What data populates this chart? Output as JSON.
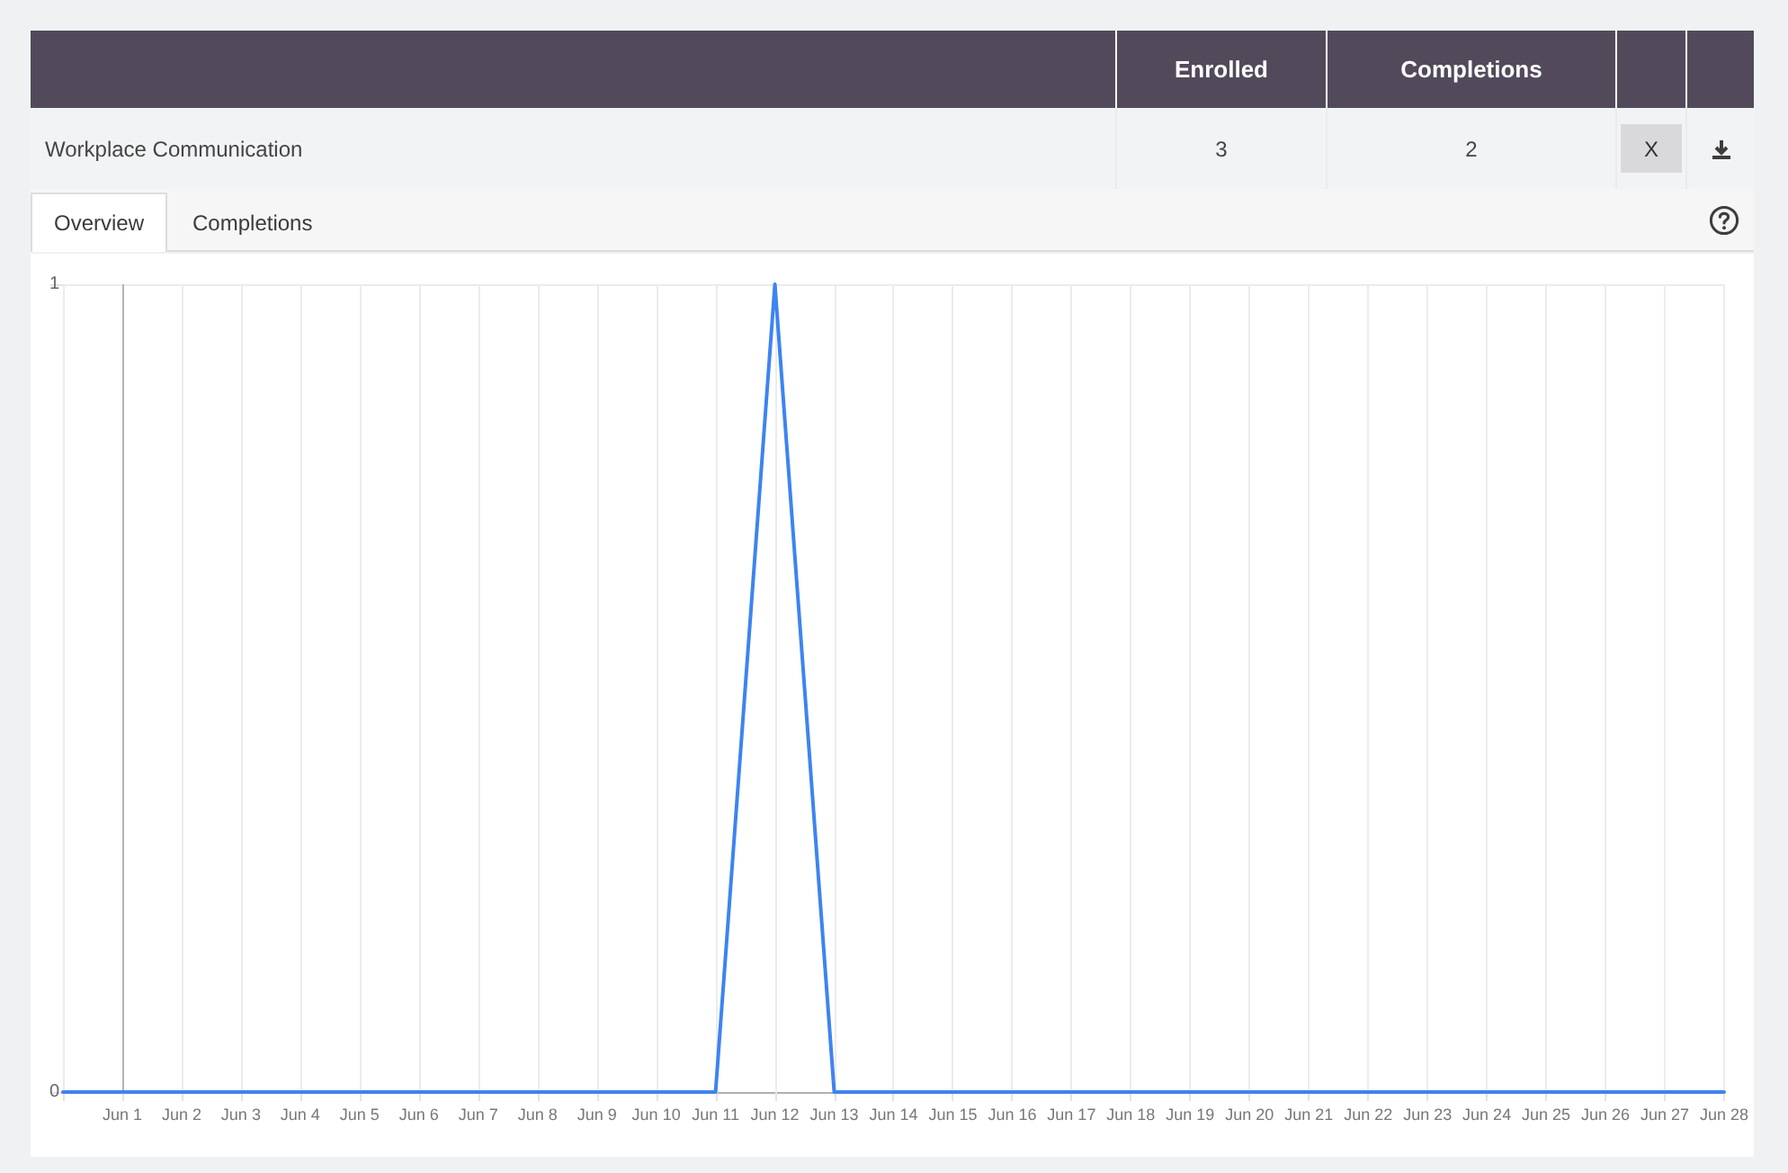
{
  "chart_data": [
    {
      "type": "other",
      "title": "Workplace Communication",
      "categories": [
        "Enrolled",
        "Completions"
      ],
      "values": [
        3,
        2
      ],
      "data_labels": true,
      "annotations": [
        "X",
        "Overview",
        "Completions"
      ]
    },
    {
      "type": "line",
      "categories": [
        null,
        "Jun 1",
        "Jun 2",
        "Jun 3",
        "Jun 4",
        "Jun 5",
        "Jun 6",
        "Jun 7",
        "Jun 8",
        "Jun 9",
        "Jun 10",
        "Jun 11",
        "Jun 12",
        "Jun 13",
        "Jun 14",
        "Jun 15",
        "Jun 16",
        "Jun 17",
        "Jun 18",
        "Jun 19",
        "Jun 20",
        "Jun 21",
        "Jun 22",
        "Jun 23",
        "Jun 24",
        "Jun 25",
        "Jun 26",
        "Jun 27",
        "Jun 28"
      ],
      "values": [
        0,
        0,
        0,
        0,
        0,
        0,
        0,
        0,
        0,
        0,
        0,
        0,
        1,
        0,
        0,
        0,
        0,
        0,
        0,
        0,
        0,
        0,
        0,
        0,
        0,
        0,
        0,
        0,
        0
      ],
      "color": "#3d84f0",
      "ylim": [
        0,
        1
      ],
      "yticks": [
        0,
        1
      ],
      "grid": true,
      "marker": "none",
      "ref_lines": [
        {
          "axis": "x",
          "value": "Jun 1",
          "color": "#b3b3b3"
        }
      ]
    }
  ]
}
